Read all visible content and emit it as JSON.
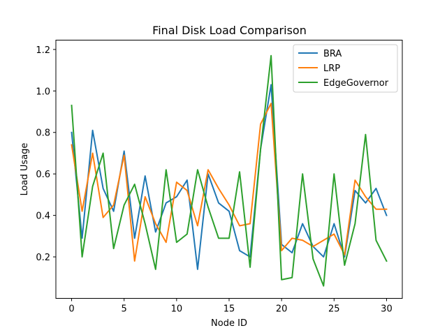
{
  "chart_data": {
    "type": "line",
    "title": "Final Disk Load Comparison",
    "xlabel": "Node ID",
    "ylabel": "Load Usage",
    "xlim": [
      -1.5,
      31.5
    ],
    "ylim": [
      0.0,
      1.245
    ],
    "x_ticks": [
      0,
      5,
      10,
      15,
      20,
      25,
      30
    ],
    "y_ticks": [
      0.2,
      0.4,
      0.6,
      0.8,
      1.0,
      1.2
    ],
    "y_tick_labels": [
      "0.2",
      "0.4",
      "0.6",
      "0.8",
      "1.0",
      "1.2"
    ],
    "grid": false,
    "legend_position": "upper right",
    "x": [
      0,
      1,
      2,
      3,
      4,
      5,
      6,
      7,
      8,
      9,
      10,
      11,
      12,
      13,
      14,
      15,
      16,
      17,
      18,
      19,
      20,
      21,
      22,
      23,
      24,
      25,
      26,
      27,
      28,
      29,
      30
    ],
    "series": [
      {
        "name": "BRA",
        "color": "#1f77b4",
        "values": [
          0.8,
          0.29,
          0.81,
          0.53,
          0.42,
          0.71,
          0.29,
          0.59,
          0.32,
          0.46,
          0.49,
          0.57,
          0.14,
          0.6,
          0.46,
          0.42,
          0.23,
          0.2,
          0.72,
          1.03,
          0.26,
          0.22,
          0.36,
          0.25,
          0.2,
          0.36,
          0.2,
          0.52,
          0.46,
          0.53,
          0.4
        ]
      },
      {
        "name": "LRP",
        "color": "#ff7f0e",
        "values": [
          0.74,
          0.42,
          0.7,
          0.39,
          0.45,
          0.69,
          0.18,
          0.49,
          0.36,
          0.27,
          0.56,
          0.52,
          0.35,
          0.62,
          0.53,
          0.45,
          0.35,
          0.36,
          0.84,
          0.94,
          0.23,
          0.29,
          0.28,
          0.25,
          0.28,
          0.31,
          0.21,
          0.57,
          0.49,
          0.43,
          0.43
        ]
      },
      {
        "name": "EdgeGovernor",
        "color": "#2ca02c",
        "values": [
          0.93,
          0.2,
          0.54,
          0.7,
          0.24,
          0.45,
          0.55,
          0.36,
          0.14,
          0.62,
          0.27,
          0.31,
          0.62,
          0.44,
          0.29,
          0.29,
          0.61,
          0.15,
          0.72,
          1.17,
          0.09,
          0.1,
          0.6,
          0.19,
          0.06,
          0.6,
          0.16,
          0.36,
          0.79,
          0.28,
          0.18
        ]
      }
    ]
  }
}
